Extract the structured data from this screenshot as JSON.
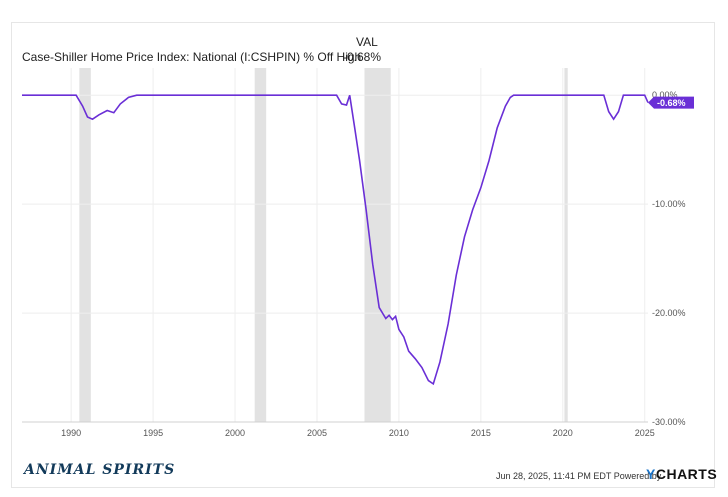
{
  "chart_data": {
    "type": "line",
    "title": "",
    "column_header": "VAL",
    "series": [
      {
        "name": "Case-Shiller Home Price Index: National (I:CSHPIN) % Off High",
        "latest": "-0.68%",
        "color": "#6a2fd6",
        "x": [
          1987.0,
          1990.3,
          1990.7,
          1991.0,
          1991.3,
          1991.7,
          1992.2,
          1992.6,
          1993.0,
          1993.5,
          1994.0,
          2006.2,
          2006.5,
          2006.8,
          2007.0,
          2007.3,
          2007.6,
          2008.0,
          2008.4,
          2008.8,
          2009.2,
          2009.4,
          2009.6,
          2009.8,
          2010.0,
          2010.3,
          2010.6,
          2011.0,
          2011.4,
          2011.8,
          2012.1,
          2012.5,
          2013.0,
          2013.5,
          2014.0,
          2014.5,
          2015.0,
          2015.5,
          2016.0,
          2016.5,
          2016.8,
          2017.0,
          2022.5,
          2022.8,
          2023.1,
          2023.4,
          2023.7,
          2025.0,
          2025.2
        ],
        "y": [
          0,
          0,
          -1.0,
          -2.0,
          -2.2,
          -1.8,
          -1.4,
          -1.6,
          -0.8,
          -0.2,
          0,
          0,
          -0.8,
          -0.9,
          0,
          -3.0,
          -6.0,
          -10.5,
          -15.5,
          -19.5,
          -20.5,
          -20.2,
          -20.6,
          -20.3,
          -21.5,
          -22.2,
          -23.5,
          -24.2,
          -25.0,
          -26.2,
          -26.5,
          -24.5,
          -21.0,
          -16.5,
          -13.0,
          -10.5,
          -8.5,
          -6.0,
          -3.0,
          -1.0,
          -0.2,
          0,
          0,
          -1.5,
          -2.2,
          -1.5,
          0,
          0,
          -0.68
        ]
      }
    ],
    "recessions": [
      [
        1990.5,
        1991.2
      ],
      [
        2001.2,
        2001.9
      ],
      [
        2007.9,
        2009.5
      ],
      [
        2020.1,
        2020.3
      ]
    ],
    "xlim": [
      1987.0,
      2025.2
    ],
    "ylim": [
      -30,
      2.5
    ],
    "x_ticks": [
      "1990",
      "1995",
      "2000",
      "2005",
      "2010",
      "2015",
      "2020",
      "2025"
    ],
    "y_ticks": [
      "0.00%",
      "-10.00%",
      "-20.00%",
      "-30.00%"
    ],
    "grid": true
  },
  "brand": "ANIMAL SPIRITS",
  "footer": {
    "timestamp": "Jun 28, 2025, 11:41 PM EDT Powered by",
    "logo_y": "Y",
    "logo_rest": "CHARTS"
  }
}
